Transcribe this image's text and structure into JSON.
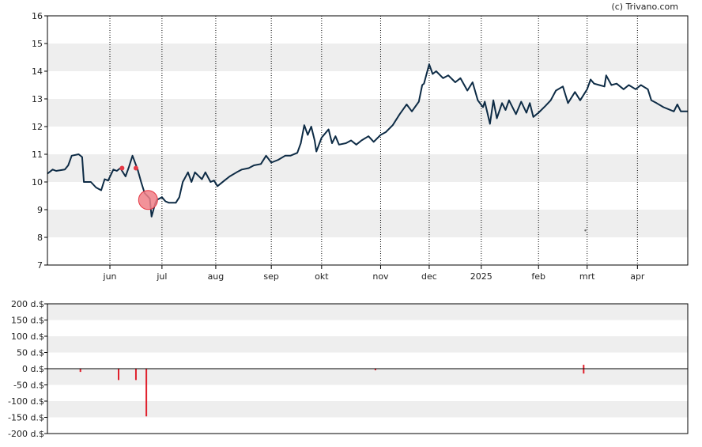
{
  "credit": "(c) Trivano.com",
  "colors": {
    "price_line": "#0d2b45",
    "band": "#eeeeee",
    "marker": "#e53945",
    "marker_fill": "#f07f87",
    "volume_bar": "#e0202c",
    "frame": "#000000",
    "grid": "#000000"
  },
  "chart_data": [
    {
      "type": "line",
      "name": "price",
      "ylim": [
        7,
        16
      ],
      "y_ticks": [
        "7",
        "8",
        "9",
        "10",
        "11",
        "12",
        "13",
        "14",
        "15",
        "16"
      ],
      "x_range": [
        "2024-04-26",
        "2025-04-30"
      ],
      "x_ticks": [
        {
          "label": "jun",
          "date": "2024-06-01"
        },
        {
          "label": "jul",
          "date": "2024-07-01"
        },
        {
          "label": "aug",
          "date": "2024-08-01"
        },
        {
          "label": "sep",
          "date": "2024-09-02"
        },
        {
          "label": "okt",
          "date": "2024-10-01"
        },
        {
          "label": "nov",
          "date": "2024-11-04"
        },
        {
          "label": "dec",
          "date": "2024-12-02"
        },
        {
          "label": "2025",
          "date": "2025-01-01"
        },
        {
          "label": "feb",
          "date": "2025-02-03"
        },
        {
          "label": "mrt",
          "date": "2025-03-03"
        },
        {
          "label": "apr",
          "date": "2025-04-01"
        }
      ],
      "grid": "vertical dotted lines at month ticks, alternating horizontal bands",
      "points": [
        [
          "2024-04-26",
          10.3
        ],
        [
          "2024-04-29",
          10.45
        ],
        [
          "2024-05-01",
          10.4
        ],
        [
          "2024-05-06",
          10.45
        ],
        [
          "2024-05-08",
          10.6
        ],
        [
          "2024-05-10",
          10.95
        ],
        [
          "2024-05-14",
          11.0
        ],
        [
          "2024-05-16",
          10.9
        ],
        [
          "2024-05-17",
          10.0
        ],
        [
          "2024-05-21",
          10.0
        ],
        [
          "2024-05-24",
          9.8
        ],
        [
          "2024-05-27",
          9.7
        ],
        [
          "2024-05-29",
          10.1
        ],
        [
          "2024-05-31",
          10.05
        ],
        [
          "2024-06-03",
          10.45
        ],
        [
          "2024-06-05",
          10.4
        ],
        [
          "2024-06-07",
          10.5
        ],
        [
          "2024-06-10",
          10.2
        ],
        [
          "2024-06-12",
          10.55
        ],
        [
          "2024-06-14",
          10.95
        ],
        [
          "2024-06-17",
          10.45
        ],
        [
          "2024-06-19",
          10.0
        ],
        [
          "2024-06-21",
          9.6
        ],
        [
          "2024-06-24",
          9.4
        ],
        [
          "2024-06-25",
          8.75
        ],
        [
          "2024-06-27",
          9.2
        ],
        [
          "2024-06-28",
          9.35
        ],
        [
          "2024-07-01",
          9.45
        ],
        [
          "2024-07-03",
          9.3
        ],
        [
          "2024-07-05",
          9.25
        ],
        [
          "2024-07-09",
          9.25
        ],
        [
          "2024-07-11",
          9.45
        ],
        [
          "2024-07-13",
          10.0
        ],
        [
          "2024-07-16",
          10.35
        ],
        [
          "2024-07-18",
          10.0
        ],
        [
          "2024-07-20",
          10.35
        ],
        [
          "2024-07-24",
          10.1
        ],
        [
          "2024-07-26",
          10.35
        ],
        [
          "2024-07-29",
          10.0
        ],
        [
          "2024-07-31",
          10.05
        ],
        [
          "2024-08-02",
          9.85
        ],
        [
          "2024-08-06",
          10.05
        ],
        [
          "2024-08-09",
          10.2
        ],
        [
          "2024-08-13",
          10.35
        ],
        [
          "2024-08-16",
          10.45
        ],
        [
          "2024-08-20",
          10.5
        ],
        [
          "2024-08-23",
          10.6
        ],
        [
          "2024-08-27",
          10.65
        ],
        [
          "2024-08-30",
          10.95
        ],
        [
          "2024-09-02",
          10.7
        ],
        [
          "2024-09-06",
          10.8
        ],
        [
          "2024-09-10",
          10.95
        ],
        [
          "2024-09-13",
          10.95
        ],
        [
          "2024-09-17",
          11.05
        ],
        [
          "2024-09-19",
          11.4
        ],
        [
          "2024-09-21",
          12.05
        ],
        [
          "2024-09-23",
          11.7
        ],
        [
          "2024-09-25",
          12.0
        ],
        [
          "2024-09-27",
          11.5
        ],
        [
          "2024-09-28",
          11.1
        ],
        [
          "2024-10-01",
          11.6
        ],
        [
          "2024-10-03",
          11.75
        ],
        [
          "2024-10-05",
          11.9
        ],
        [
          "2024-10-07",
          11.4
        ],
        [
          "2024-10-09",
          11.65
        ],
        [
          "2024-10-11",
          11.35
        ],
        [
          "2024-10-15",
          11.4
        ],
        [
          "2024-10-18",
          11.5
        ],
        [
          "2024-10-21",
          11.35
        ],
        [
          "2024-10-24",
          11.5
        ],
        [
          "2024-10-28",
          11.65
        ],
        [
          "2024-10-31",
          11.45
        ],
        [
          "2024-11-04",
          11.7
        ],
        [
          "2024-11-07",
          11.8
        ],
        [
          "2024-11-11",
          12.05
        ],
        [
          "2024-11-15",
          12.45
        ],
        [
          "2024-11-19",
          12.8
        ],
        [
          "2024-11-22",
          12.55
        ],
        [
          "2024-11-26",
          12.9
        ],
        [
          "2024-11-28",
          13.5
        ],
        [
          "2024-11-29",
          13.55
        ],
        [
          "2024-12-02",
          14.25
        ],
        [
          "2024-12-04",
          13.9
        ],
        [
          "2024-12-06",
          14.0
        ],
        [
          "2024-12-10",
          13.75
        ],
        [
          "2024-12-13",
          13.85
        ],
        [
          "2024-12-17",
          13.6
        ],
        [
          "2024-12-20",
          13.75
        ],
        [
          "2024-12-24",
          13.3
        ],
        [
          "2024-12-27",
          13.6
        ],
        [
          "2024-12-30",
          12.95
        ],
        [
          "2025-01-02",
          12.7
        ],
        [
          "2025-01-03",
          12.9
        ],
        [
          "2025-01-06",
          12.1
        ],
        [
          "2025-01-08",
          12.95
        ],
        [
          "2025-01-10",
          12.3
        ],
        [
          "2025-01-13",
          12.85
        ],
        [
          "2025-01-15",
          12.6
        ],
        [
          "2025-01-17",
          12.95
        ],
        [
          "2025-01-21",
          12.45
        ],
        [
          "2025-01-24",
          12.9
        ],
        [
          "2025-01-27",
          12.5
        ],
        [
          "2025-01-29",
          12.85
        ],
        [
          "2025-01-31",
          12.35
        ],
        [
          "2025-02-03",
          12.5
        ],
        [
          "2025-02-07",
          12.75
        ],
        [
          "2025-02-10",
          12.95
        ],
        [
          "2025-02-13",
          13.3
        ],
        [
          "2025-02-17",
          13.45
        ],
        [
          "2025-02-20",
          12.85
        ],
        [
          "2025-02-24",
          13.25
        ],
        [
          "2025-02-27",
          12.95
        ],
        [
          "2025-03-03",
          13.35
        ],
        [
          "2025-03-05",
          13.7
        ],
        [
          "2025-03-07",
          13.55
        ],
        [
          "2025-03-10",
          13.5
        ],
        [
          "2025-03-13",
          13.45
        ],
        [
          "2025-03-14",
          13.85
        ],
        [
          "2025-03-17",
          13.5
        ],
        [
          "2025-03-20",
          13.55
        ],
        [
          "2025-03-24",
          13.35
        ],
        [
          "2025-03-27",
          13.5
        ],
        [
          "2025-03-31",
          13.35
        ],
        [
          "2025-04-03",
          13.5
        ],
        [
          "2025-04-07",
          13.35
        ],
        [
          "2025-04-09",
          12.95
        ],
        [
          "2025-04-12",
          12.85
        ],
        [
          "2025-04-16",
          12.7
        ],
        [
          "2025-04-22",
          12.55
        ],
        [
          "2025-04-24",
          12.8
        ],
        [
          "2025-04-26",
          12.55
        ],
        [
          "2025-04-30",
          12.55
        ]
      ],
      "markers": [
        {
          "date": "2024-06-08",
          "value": 10.5,
          "size": "small"
        },
        {
          "date": "2024-06-16",
          "value": 10.5,
          "size": "small"
        },
        {
          "date": "2024-06-23",
          "value": 9.35,
          "size": "large"
        },
        {
          "date": "2025-03-02",
          "value": 8.25,
          "size": "dot"
        }
      ]
    },
    {
      "type": "bar",
      "name": "volume",
      "ylim": [
        -200,
        200
      ],
      "y_ticks": [
        "200 d.$",
        "150 d.$",
        "100 d.$",
        "50 d.$",
        "0 d.$",
        "-50 d.$",
        "-100 d.$",
        "-150 d.$",
        "-200 d.$"
      ],
      "bars": [
        {
          "date": "2024-05-15",
          "value": -10
        },
        {
          "date": "2024-06-06",
          "value": -35
        },
        {
          "date": "2024-06-16",
          "value": -35
        },
        {
          "date": "2024-06-22",
          "value": -147
        },
        {
          "date": "2024-11-01",
          "value": -5
        },
        {
          "date": "2025-03-01",
          "value": -15
        },
        {
          "date": "2025-03-01",
          "value": 12
        }
      ]
    }
  ]
}
